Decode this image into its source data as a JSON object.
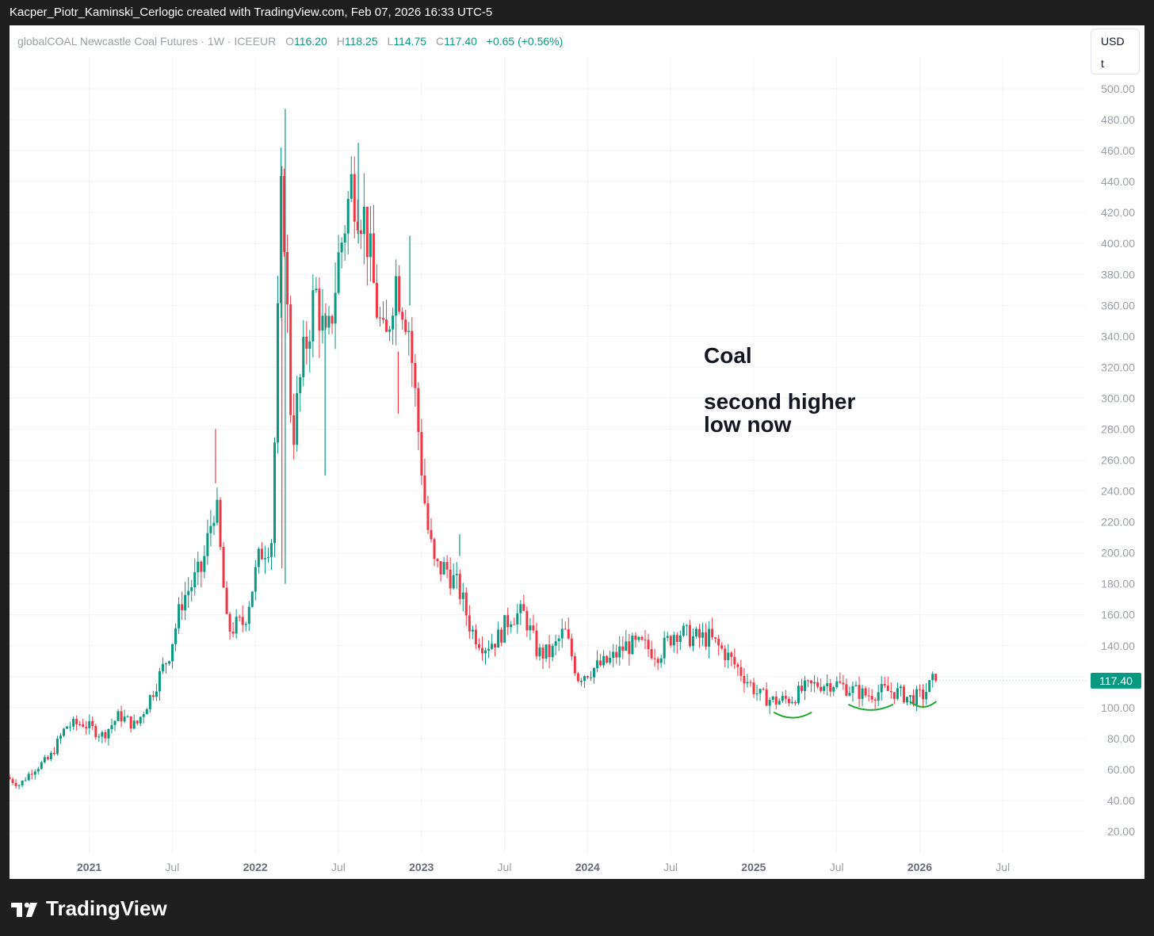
{
  "attribution": "Kacper_Piotr_Kaminski_Cerlogic created with TradingView.com, Feb 07, 2026 16:33 UTC-5",
  "legend": {
    "symbol": "globalCOAL Newcastle Coal Futures · 1W · ICEEUR",
    "o_label": "O",
    "o_value": "116.20",
    "h_label": "H",
    "h_value": "118.25",
    "l_label": "L",
    "l_value": "114.75",
    "c_label": "C",
    "c_value": "117.40",
    "change": "+0.65 (+0.56%)"
  },
  "unit": {
    "currency": "USD",
    "per": "t"
  },
  "annotation": {
    "line1": "Coal",
    "line2": "second higher",
    "line3": "low now"
  },
  "footer": {
    "brand": "TradingView"
  },
  "colors": {
    "up": "#089981",
    "down": "#f23645",
    "annotation_curve": "#22a834",
    "last_price_tag": "#089981"
  },
  "chart_data": {
    "type": "candlestick",
    "interval": "1W",
    "last_price": "117.40",
    "y_ticks": [
      "20.00",
      "40.00",
      "60.00",
      "80.00",
      "100.00",
      "120.00",
      "140.00",
      "160.00",
      "180.00",
      "200.00",
      "220.00",
      "240.00",
      "260.00",
      "280.00",
      "300.00",
      "320.00",
      "340.00",
      "360.00",
      "380.00",
      "400.00",
      "420.00",
      "440.00",
      "460.00",
      "480.00",
      "500.00"
    ],
    "ylim": [
      10,
      510
    ],
    "x_ticks": [
      {
        "label": "2021",
        "t": 2021.0,
        "bold": true
      },
      {
        "label": "Jul",
        "t": 2021.5,
        "bold": false
      },
      {
        "label": "2022",
        "t": 2022.0,
        "bold": true
      },
      {
        "label": "Jul",
        "t": 2022.5,
        "bold": false
      },
      {
        "label": "2023",
        "t": 2023.0,
        "bold": true
      },
      {
        "label": "Jul",
        "t": 2023.5,
        "bold": false
      },
      {
        "label": "2024",
        "t": 2024.0,
        "bold": true
      },
      {
        "label": "Jul",
        "t": 2024.5,
        "bold": false
      },
      {
        "label": "2025",
        "t": 2025.0,
        "bold": true
      },
      {
        "label": "Jul",
        "t": 2025.5,
        "bold": false
      },
      {
        "label": "2026",
        "t": 2026.0,
        "bold": true
      },
      {
        "label": "Jul",
        "t": 2026.5,
        "bold": false
      }
    ],
    "xlim": [
      2020.52,
      2027.0
    ],
    "path_points": [
      [
        2020.52,
        55
      ],
      [
        2020.6,
        50
      ],
      [
        2020.68,
        60
      ],
      [
        2020.78,
        67
      ],
      [
        2020.88,
        88
      ],
      [
        2020.98,
        90
      ],
      [
        2021.1,
        82
      ],
      [
        2021.2,
        95
      ],
      [
        2021.3,
        88
      ],
      [
        2021.4,
        110
      ],
      [
        2021.5,
        135
      ],
      [
        2021.58,
        170
      ],
      [
        2021.7,
        190
      ],
      [
        2021.78,
        235
      ],
      [
        2021.85,
        150
      ],
      [
        2021.95,
        155
      ],
      [
        2022.05,
        200
      ],
      [
        2022.12,
        210
      ],
      [
        2022.18,
        450
      ],
      [
        2022.24,
        270
      ],
      [
        2022.3,
        320
      ],
      [
        2022.38,
        370
      ],
      [
        2022.45,
        330
      ],
      [
        2022.52,
        390
      ],
      [
        2022.6,
        440
      ],
      [
        2022.68,
        415
      ],
      [
        2022.74,
        365
      ],
      [
        2022.8,
        330
      ],
      [
        2022.86,
        380
      ],
      [
        2022.94,
        350
      ],
      [
        2023.0,
        280
      ],
      [
        2023.05,
        220
      ],
      [
        2023.1,
        190
      ],
      [
        2023.17,
        190
      ],
      [
        2023.25,
        175
      ],
      [
        2023.32,
        150
      ],
      [
        2023.4,
        140
      ],
      [
        2023.48,
        145
      ],
      [
        2023.56,
        160
      ],
      [
        2023.64,
        160
      ],
      [
        2023.72,
        135
      ],
      [
        2023.8,
        135
      ],
      [
        2023.88,
        150
      ],
      [
        2023.96,
        120
      ],
      [
        2024.05,
        125
      ],
      [
        2024.15,
        130
      ],
      [
        2024.25,
        140
      ],
      [
        2024.35,
        140
      ],
      [
        2024.45,
        135
      ],
      [
        2024.55,
        150
      ],
      [
        2024.65,
        145
      ],
      [
        2024.75,
        145
      ],
      [
        2024.85,
        135
      ],
      [
        2024.95,
        122
      ],
      [
        2025.05,
        108
      ],
      [
        2025.15,
        104
      ],
      [
        2025.25,
        106
      ],
      [
        2025.32,
        112
      ],
      [
        2025.4,
        115
      ],
      [
        2025.5,
        116
      ],
      [
        2025.6,
        112
      ],
      [
        2025.7,
        108
      ],
      [
        2025.8,
        111
      ],
      [
        2025.88,
        110
      ],
      [
        2025.96,
        106
      ],
      [
        2026.04,
        108
      ],
      [
        2026.1,
        117.4
      ]
    ],
    "spikes": [
      [
        2021.76,
        280,
        245
      ],
      [
        2022.18,
        487,
        180
      ],
      [
        2022.16,
        450,
        190
      ],
      [
        2022.62,
        465,
        400
      ],
      [
        2022.93,
        405,
        360
      ],
      [
        2022.86,
        290,
        330
      ],
      [
        2023.23,
        212,
        198
      ],
      [
        2022.42,
        355,
        250
      ]
    ],
    "higher_low_markers": [
      {
        "t1": 2025.12,
        "t2": 2025.35,
        "y": 95
      },
      {
        "t1": 2025.57,
        "t2": 2025.84,
        "y": 100
      },
      {
        "t1": 2025.94,
        "t2": 2026.1,
        "y": 102
      }
    ]
  }
}
